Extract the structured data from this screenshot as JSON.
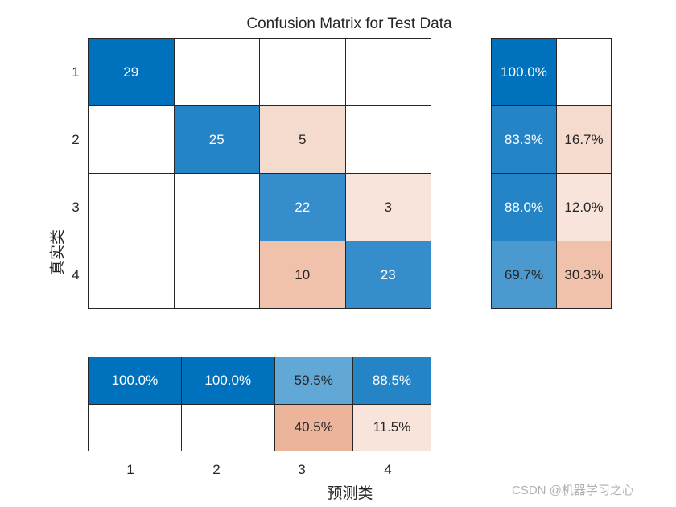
{
  "chart_data": {
    "type": "heatmap",
    "title": "Confusion Matrix for Test Data",
    "xlabel": "预测类",
    "ylabel": "真实类",
    "classes": [
      "1",
      "2",
      "3",
      "4"
    ],
    "matrix": [
      [
        29,
        null,
        null,
        null
      ],
      [
        null,
        25,
        5,
        null
      ],
      [
        null,
        null,
        22,
        3
      ],
      [
        null,
        null,
        10,
        23
      ]
    ],
    "row_summary": [
      {
        "correct": "100.0%",
        "incorrect": ""
      },
      {
        "correct": "83.3%",
        "incorrect": "16.7%"
      },
      {
        "correct": "88.0%",
        "incorrect": "12.0%"
      },
      {
        "correct": "69.7%",
        "incorrect": "30.3%"
      }
    ],
    "column_summary": {
      "correct": [
        "100.0%",
        "100.0%",
        "59.5%",
        "88.5%"
      ],
      "incorrect": [
        "",
        "",
        "40.5%",
        "11.5%"
      ]
    },
    "colors": {
      "blue_max": "#0072BD",
      "blue_high": "#2484C6",
      "blue_mid": "#358ECB",
      "blue_low": "#4A9AD0",
      "blue_lower": "#62A8D7",
      "red_light": "#F8E4DB",
      "red_lightmid": "#F5DACE",
      "red_mid": "#F0C2AC",
      "red_high": "#EDB49C"
    }
  },
  "cells": [
    [
      {
        "t": "29",
        "bg": "#0072BD",
        "fg": "#ffffff"
      },
      {
        "t": "",
        "bg": "#ffffff",
        "fg": "#262626"
      },
      {
        "t": "",
        "bg": "#ffffff",
        "fg": "#262626"
      },
      {
        "t": "",
        "bg": "#ffffff",
        "fg": "#262626"
      }
    ],
    [
      {
        "t": "",
        "bg": "#ffffff",
        "fg": "#262626"
      },
      {
        "t": "25",
        "bg": "#2484C6",
        "fg": "#ffffff"
      },
      {
        "t": "5",
        "bg": "#F5DACE",
        "fg": "#262626"
      },
      {
        "t": "",
        "bg": "#ffffff",
        "fg": "#262626"
      }
    ],
    [
      {
        "t": "",
        "bg": "#ffffff",
        "fg": "#262626"
      },
      {
        "t": "",
        "bg": "#ffffff",
        "fg": "#262626"
      },
      {
        "t": "22",
        "bg": "#358ECB",
        "fg": "#ffffff"
      },
      {
        "t": "3",
        "bg": "#F8E4DB",
        "fg": "#262626"
      }
    ],
    [
      {
        "t": "",
        "bg": "#ffffff",
        "fg": "#262626"
      },
      {
        "t": "",
        "bg": "#ffffff",
        "fg": "#262626"
      },
      {
        "t": "10",
        "bg": "#F0C2AC",
        "fg": "#262626"
      },
      {
        "t": "23",
        "bg": "#358ECB",
        "fg": "#ffffff"
      }
    ]
  ],
  "row_cells": [
    [
      {
        "t": "100.0%",
        "bg": "#0072BD",
        "fg": "#ffffff"
      },
      {
        "t": "",
        "bg": "#ffffff",
        "fg": "#262626"
      }
    ],
    [
      {
        "t": "83.3%",
        "bg": "#2484C6",
        "fg": "#ffffff"
      },
      {
        "t": "16.7%",
        "bg": "#F5DACE",
        "fg": "#262626"
      }
    ],
    [
      {
        "t": "88.0%",
        "bg": "#2484C6",
        "fg": "#ffffff"
      },
      {
        "t": "12.0%",
        "bg": "#F8E4DB",
        "fg": "#262626"
      }
    ],
    [
      {
        "t": "69.7%",
        "bg": "#4A9AD0",
        "fg": "#262626"
      },
      {
        "t": "30.3%",
        "bg": "#F0C2AC",
        "fg": "#262626"
      }
    ]
  ],
  "col_cells": [
    [
      {
        "t": "100.0%",
        "bg": "#0072BD",
        "fg": "#ffffff"
      },
      {
        "t": "100.0%",
        "bg": "#0072BD",
        "fg": "#ffffff"
      },
      {
        "t": "59.5%",
        "bg": "#62A8D7",
        "fg": "#262626"
      },
      {
        "t": "88.5%",
        "bg": "#2484C6",
        "fg": "#ffffff"
      }
    ],
    [
      {
        "t": "",
        "bg": "#ffffff",
        "fg": "#262626"
      },
      {
        "t": "",
        "bg": "#ffffff",
        "fg": "#262626"
      },
      {
        "t": "40.5%",
        "bg": "#EDB49C",
        "fg": "#262626"
      },
      {
        "t": "11.5%",
        "bg": "#F8E4DB",
        "fg": "#262626"
      }
    ]
  ],
  "ticks": {
    "y": [
      "1",
      "2",
      "3",
      "4"
    ],
    "x": [
      "1",
      "2",
      "3",
      "4"
    ]
  },
  "watermark": "CSDN @机器学习之心"
}
